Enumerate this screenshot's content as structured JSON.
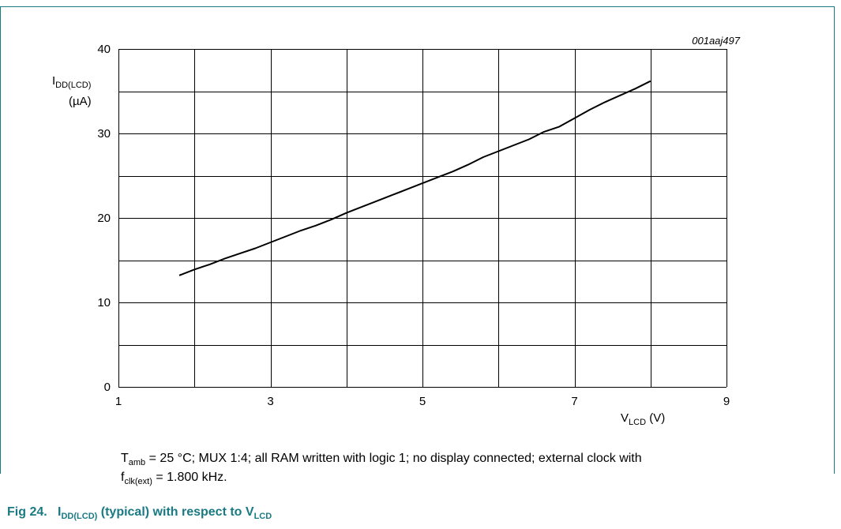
{
  "figure": {
    "id": "001aaj497",
    "number_label": "Fig 24.",
    "title": {
      "prefix": "I",
      "prefix_sub": "DD(LCD)",
      "middle": " (typical) with respect to V",
      "suffix_sub": "LCD"
    },
    "conditions": {
      "t_symbol": "T",
      "t_sub": "amb",
      "line1_rest": " = 25 °C; MUX 1:4; all RAM written with logic 1; no display connected; external clock with",
      "f_symbol": "f",
      "f_sub": "clk(ext)",
      "line2_rest": " = 1.800 kHz."
    },
    "colors": {
      "border": "#1a7a84",
      "caption": "#1a7a84",
      "line": "#000000"
    }
  },
  "chart_data": {
    "type": "line",
    "x_label": {
      "main": "V",
      "sub": "LCD",
      "unit": " (V)"
    },
    "y_label": {
      "main": "I",
      "sub": "DD(LCD)",
      "unit": "(µA)"
    },
    "xlim": [
      1,
      9
    ],
    "ylim": [
      0,
      40
    ],
    "x_ticks": [
      "1",
      "3",
      "5",
      "7",
      "9"
    ],
    "y_ticks": [
      "0",
      "10",
      "20",
      "30",
      "40"
    ],
    "grid": true,
    "series": [
      {
        "x": [
          1.8,
          2.0,
          2.2,
          2.4,
          2.6,
          2.8,
          3.0,
          3.2,
          3.4,
          3.6,
          3.8,
          4.0,
          4.2,
          4.4,
          4.6,
          4.8,
          5.0,
          5.2,
          5.4,
          5.6,
          5.8,
          6.0,
          6.2,
          6.4,
          6.6,
          6.8,
          7.0,
          7.2,
          7.4,
          7.6,
          7.8,
          8.0
        ],
        "y": [
          13.2,
          13.9,
          14.5,
          15.2,
          15.8,
          16.4,
          17.1,
          17.8,
          18.5,
          19.1,
          19.8,
          20.6,
          21.3,
          22.0,
          22.7,
          23.4,
          24.1,
          24.8,
          25.5,
          26.3,
          27.2,
          27.9,
          28.6,
          29.3,
          30.2,
          30.8,
          31.8,
          32.8,
          33.7,
          34.5,
          35.3,
          36.2
        ]
      }
    ]
  }
}
